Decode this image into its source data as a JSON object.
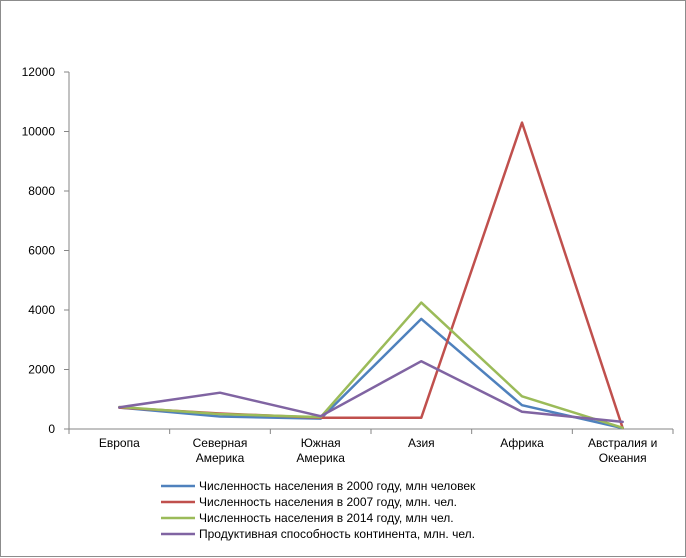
{
  "chart_data": {
    "type": "line",
    "categories": [
      [
        "Европа"
      ],
      [
        "Северная",
        "Америка"
      ],
      [
        "Южная",
        "Америка"
      ],
      [
        "Азия"
      ],
      [
        "Африка"
      ],
      [
        "Австралия и",
        "Океания"
      ]
    ],
    "y_ticks": [
      "0",
      "2000",
      "4000",
      "6000",
      "8000",
      "10000",
      "12000"
    ],
    "ylim": [
      0,
      12000
    ],
    "grid": false,
    "legend_position": "bottom",
    "series": [
      {
        "name": "Численность населения  в 2000 году, млн человек",
        "color": "#4f81bd",
        "values": [
          720,
          420,
          350,
          3700,
          800,
          30
        ]
      },
      {
        "name": "Численность населения  в 2007 году, млн. чел.",
        "color": "#c0504d",
        "values": [
          720,
          520,
          380,
          380,
          10300,
          30
        ]
      },
      {
        "name": "Численность населения  в 2014 году, млн чел.",
        "color": "#9bbb59",
        "values": [
          740,
          500,
          400,
          4250,
          1100,
          40
        ]
      },
      {
        "name": "Продуктивная способность континента, млн. чел.",
        "color": "#8064a2",
        "values": [
          730,
          1220,
          430,
          2280,
          580,
          240
        ]
      }
    ]
  }
}
